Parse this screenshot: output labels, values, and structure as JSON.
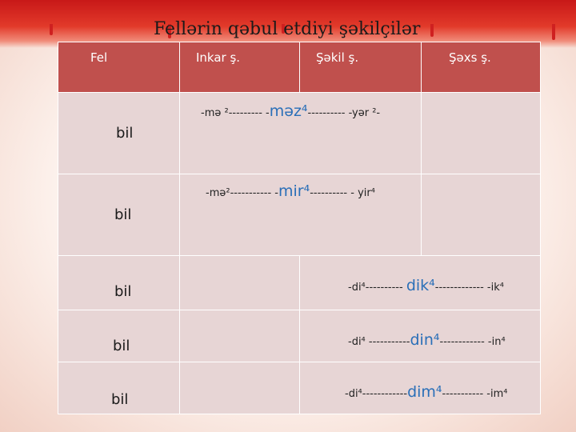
{
  "title": "Fellərin qəbul etdiyi şəkilçilər",
  "headers": {
    "fel": "Fel",
    "inkar": "Inkar ş.",
    "sekil": "Şəkil  ş.",
    "sexs": "Şəxs   ş."
  },
  "rows": [
    {
      "verb": "bil",
      "pre": "-mə ²--------- -",
      "mid": "məz⁴",
      "post": "---------- -yər ²-"
    },
    {
      "verb": "bil",
      "pre": "-mə²----------- -",
      "mid": "mir⁴",
      "post": "---------- -  yir⁴"
    },
    {
      "verb": "bil",
      "pre": "-di⁴----------  ",
      "mid": "dik⁴",
      "post": "------------- -ik⁴"
    },
    {
      "verb": "bil",
      "pre": "-di⁴ -----------",
      "mid": "din⁴",
      "post": "------------ -in⁴"
    },
    {
      "verb": "bil",
      "pre": "-di⁴------------",
      "mid": "dim⁴",
      "post": "----------- -im⁴"
    }
  ],
  "colors": {
    "header": "#c0504d",
    "cell": "#e7d5d5",
    "banner": "#d42020"
  }
}
